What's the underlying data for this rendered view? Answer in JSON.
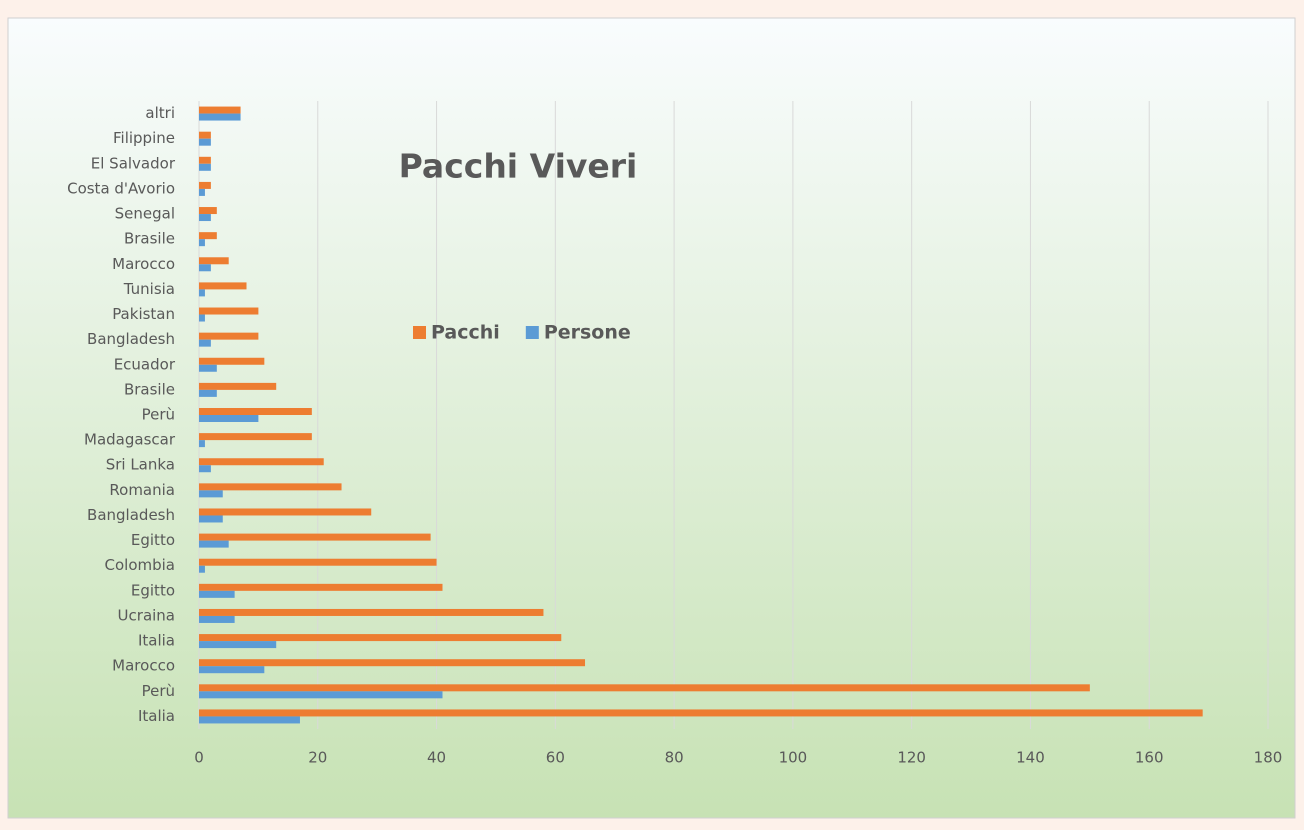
{
  "chart_data": {
    "type": "hbar",
    "title": "Pacchi Viveri",
    "categories": [
      "Italia",
      "Perù",
      "Marocco",
      "Italia",
      "Ucraina",
      "Egitto",
      "Colombia",
      "Egitto",
      "Bangladesh",
      "Romania",
      "Sri Lanka",
      "Madagascar",
      "Perù",
      "Brasile",
      "Ecuador",
      "Bangladesh",
      "Pakistan",
      "Tunisia",
      "Marocco",
      "Brasile",
      "Senegal",
      "Costa d'Avorio",
      "El Salvador",
      "Filippine",
      "altri"
    ],
    "series": [
      {
        "name": "Pacchi",
        "color": "#ed7d31",
        "values": [
          169,
          150,
          65,
          61,
          58,
          41,
          40,
          39,
          29,
          24,
          21,
          19,
          19,
          13,
          11,
          10,
          10,
          8,
          5,
          3,
          3,
          2,
          2,
          2,
          7
        ]
      },
      {
        "name": "Persone",
        "color": "#5b9bd5",
        "values": [
          17,
          41,
          11,
          13,
          6,
          6,
          1,
          5,
          4,
          4,
          2,
          1,
          10,
          3,
          3,
          2,
          1,
          1,
          2,
          1,
          2,
          1,
          2,
          2,
          7
        ]
      }
    ],
    "xlim": [
      0,
      180
    ],
    "xticks": [
      0,
      20,
      40,
      60,
      80,
      100,
      120,
      140,
      160,
      180
    ],
    "grid": true
  }
}
